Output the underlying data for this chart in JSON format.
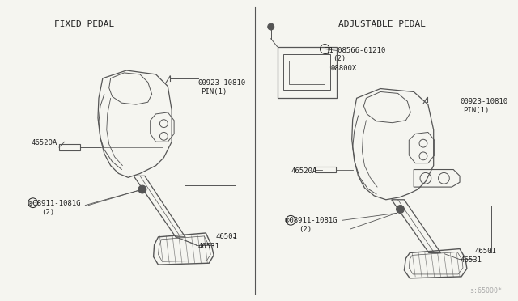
{
  "bg_color": "#f5f5f0",
  "line_color": "#555555",
  "text_color": "#222222",
  "title_left": "FIXED PEDAL",
  "title_right": "ADJUSTABLE PEDAL",
  "watermark": "s:65000*",
  "font_size_title": 8,
  "font_size_label": 6.5,
  "font_size_watermark": 6
}
